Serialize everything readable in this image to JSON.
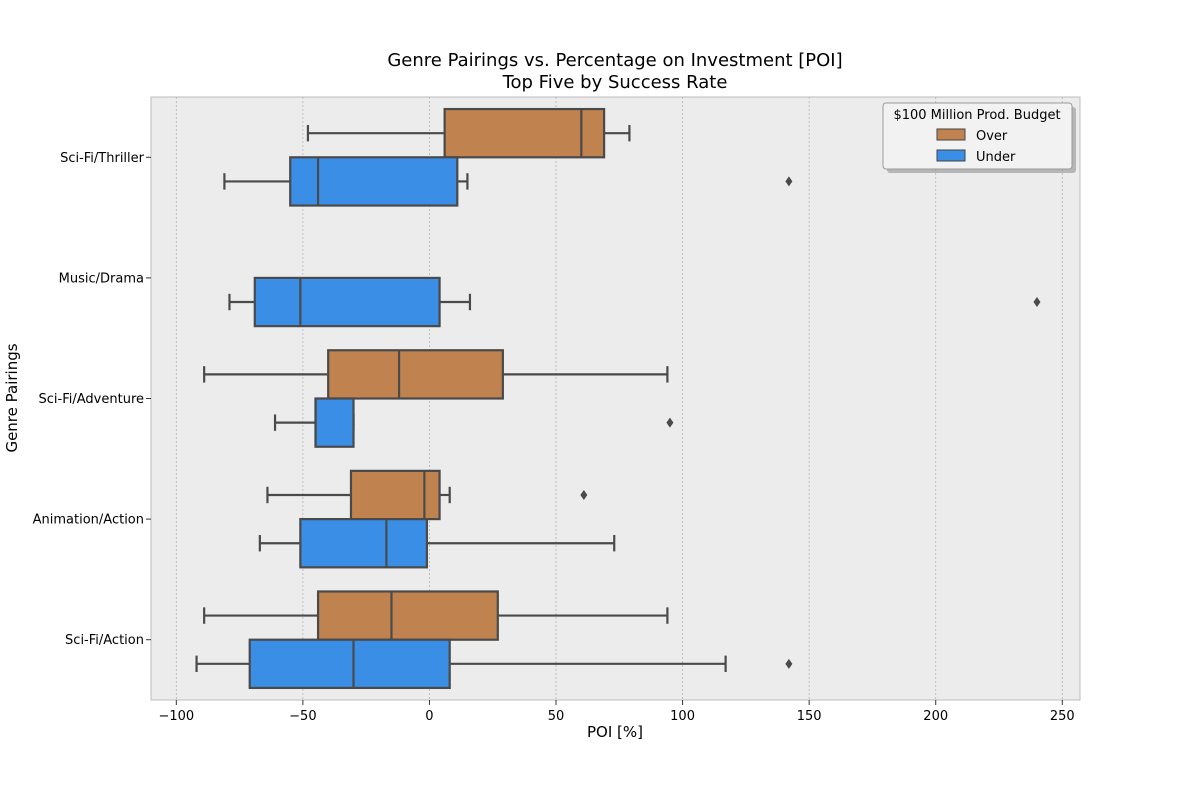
{
  "chart_data": {
    "type": "boxplot",
    "title": "Genre Pairings vs. Percentage on Investment [POI]",
    "subtitle": "Top Five by Success Rate",
    "xlabel": "POI [%]",
    "ylabel": "Genre Pairings",
    "xlim": [
      -110,
      257
    ],
    "xticks": [
      -100,
      -50,
      0,
      50,
      100,
      150,
      200,
      250
    ],
    "orientation": "horizontal",
    "grid": "vertical dashed",
    "categories": [
      "Sci-Fi/Thriller",
      "Music/Drama",
      "Sci-Fi/Adventure",
      "Animation/Action",
      "Sci-Fi/Action"
    ],
    "legend": {
      "title": "$100 Million Prod. Budget",
      "position": "top-right",
      "entries": [
        "Over",
        "Under"
      ]
    },
    "series": [
      {
        "name": "Over",
        "color": "#c0834f",
        "boxes": [
          {
            "category": "Sci-Fi/Thriller",
            "whisker_low": -48,
            "q1": 6,
            "median": 60,
            "q3": 69,
            "whisker_high": 79,
            "outliers": []
          },
          null,
          {
            "category": "Sci-Fi/Adventure",
            "whisker_low": -89,
            "q1": -40,
            "median": -12,
            "q3": 29,
            "whisker_high": 94,
            "outliers": []
          },
          {
            "category": "Animation/Action",
            "whisker_low": -64,
            "q1": -31,
            "median": -2,
            "q3": 4,
            "whisker_high": 8,
            "outliers": [
              61
            ]
          },
          {
            "category": "Sci-Fi/Action",
            "whisker_low": -89,
            "q1": -44,
            "median": -15,
            "q3": 27,
            "whisker_high": 94,
            "outliers": []
          }
        ]
      },
      {
        "name": "Under",
        "color": "#3a8ee6",
        "boxes": [
          {
            "category": "Sci-Fi/Thriller",
            "whisker_low": -81,
            "q1": -55,
            "median": -44,
            "q3": 11,
            "whisker_high": 15,
            "outliers": [
              142
            ]
          },
          {
            "category": "Music/Drama",
            "whisker_low": -79,
            "q1": -69,
            "median": -51,
            "q3": 4,
            "whisker_high": 16,
            "outliers": [
              240
            ]
          },
          {
            "category": "Sci-Fi/Adventure",
            "whisker_low": -61,
            "q1": -45,
            "median": -45,
            "q3": -30,
            "whisker_high": -30,
            "outliers": [
              95
            ]
          },
          {
            "category": "Animation/Action",
            "whisker_low": -67,
            "q1": -51,
            "median": -17,
            "q3": -1,
            "whisker_high": 73,
            "outliers": []
          },
          {
            "category": "Sci-Fi/Action",
            "whisker_low": -92,
            "q1": -71,
            "median": -30,
            "q3": 8,
            "whisker_high": 117,
            "outliers": [
              142
            ]
          }
        ]
      }
    ]
  }
}
